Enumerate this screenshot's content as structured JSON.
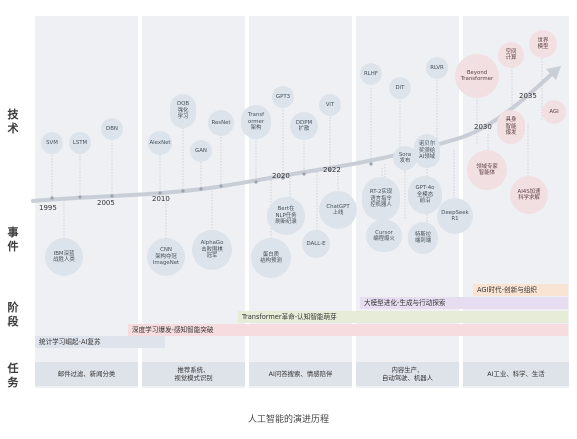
{
  "row_labels": {
    "tech": "技术",
    "event": "事件",
    "stage": "阶段",
    "task": "任务"
  },
  "years": {
    "y1995": "1995",
    "y2005": "2005",
    "y2010": "2010",
    "y2020": "2020",
    "y2022": "2022",
    "y2030": "2030",
    "y2035": "2035"
  },
  "tech": {
    "svm": "SVM",
    "lstm": "LSTM",
    "dbn": "DBN",
    "alexnet": "AlexNet",
    "dqb": "DQB\n强化\n学习",
    "gan": "GAN",
    "resnet": "ResNet",
    "transformer": "Transf\normer\n架构",
    "gpt3": "GPT3",
    "ddpm": "DDPM\n扩散",
    "vit": "ViT",
    "rlhf": "RLHF",
    "dit": "DiT",
    "rlvr": "RLVR",
    "beyond": "Beyond\nTransformer",
    "spatial": "空间\n计算",
    "world": "世界\n模型",
    "embodied": "具身\n智能\n爆发",
    "agi": "AGI"
  },
  "events": {
    "ibm": "IBM深蓝\n战胜人类",
    "cnn": "CNN\n架构夺冠\nImageNet",
    "alphago": "AlphaGo\n击败围棋\n冠军",
    "bert": "Bert在\nNLP任务\n刷新纪录",
    "protein": "蛋白质\n结构预测",
    "dalle": "DALL-E",
    "chatgpt": "ChatGPT\n上线",
    "rt2": "RT-2实现\n语言指令\n控机器人",
    "sora": "Sora\n发布",
    "nobel": "诺贝尔\n奖颁给\nAI领域",
    "gpt4o": "GPT-4o\n全模态\n前沿",
    "cursor": "Cursor\n编程爆火",
    "tesla": "特斯拉\n端到端",
    "deepseek": "DeepSeek\nR1",
    "expert": "领域专家\n智能体",
    "ai4s": "AI4S加速\n科学求解"
  },
  "stages": {
    "s1": "统计学习崛起-AI复苏",
    "s2": "深度学习爆发-感知智能突破",
    "s3": "Transformer革命-认知智能萌芽",
    "s4": "大模型进化-生成与行动探索",
    "s5": "AGI时代-创新与组织"
  },
  "tasks": {
    "t1": "邮件过滤、新闻分类",
    "t2": "推荐系统、\n视觉模式识别",
    "t3": "AI问答搜索、情感陪伴",
    "t4": "内容生产、\n自动驾驶、机器人",
    "t5": "AI工业、科学、生活"
  },
  "caption": "人工智能的演进历程",
  "colors": {
    "panel": "#eef0f4",
    "bubble": "#dde3ea",
    "bubble_pink": "#f2dfe2",
    "stage1": "#dfe4ec",
    "stage2": "#f6dcde",
    "stage3": "#e6ecd7",
    "stage4": "#e6def0",
    "stage5": "#f9e3d2"
  }
}
